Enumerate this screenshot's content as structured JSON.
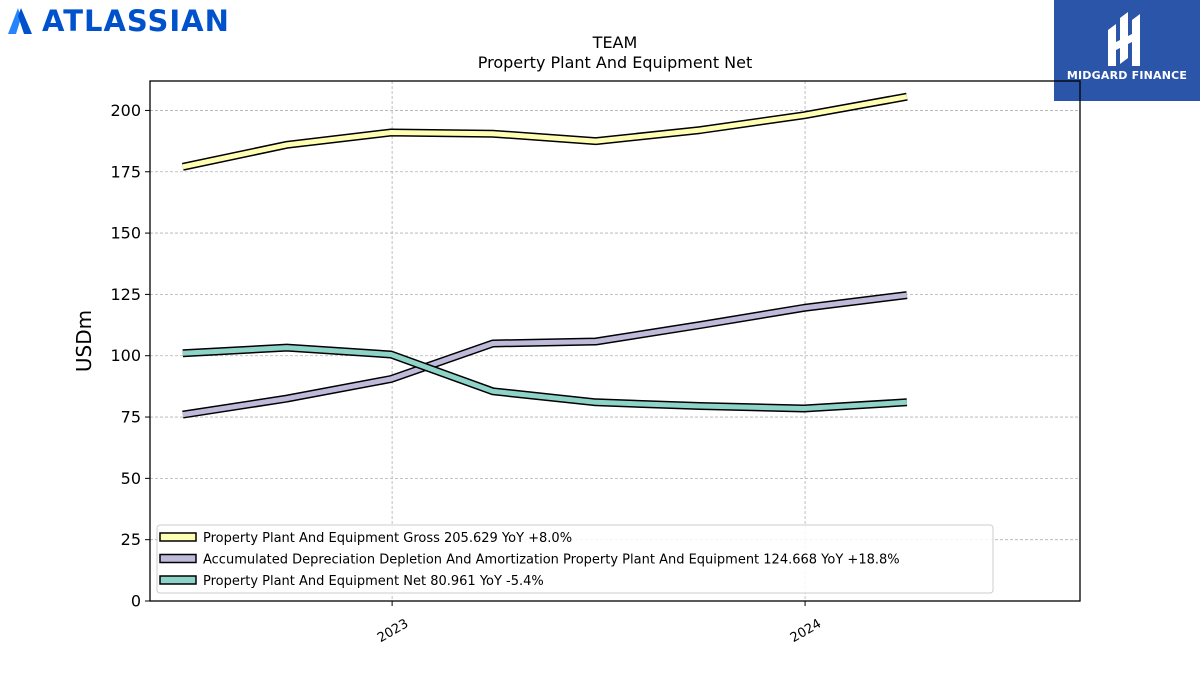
{
  "branding": {
    "left_logo_text": "ATLASSIAN",
    "left_logo_color": "#0052cc",
    "right_logo_text": "MIDGARD FINANCE",
    "right_logo_bg": "#2a55a8"
  },
  "chart_data": {
    "type": "line",
    "title": "TEAM",
    "subtitle": "Property Plant And Equipment Net",
    "ylabel": "USDm",
    "xlabel": "",
    "ylim": [
      0,
      212
    ],
    "yticks": [
      0,
      25,
      50,
      75,
      100,
      125,
      150,
      175,
      200
    ],
    "xlim": [
      "2022-06-01",
      "2024-08-31"
    ],
    "xticks": [
      {
        "label": "2023",
        "date": "2023-01-01"
      },
      {
        "label": "2024",
        "date": "2024-01-01"
      }
    ],
    "x": [
      "2022-06-30",
      "2022-09-30",
      "2022-12-31",
      "2023-03-31",
      "2023-06-30",
      "2023-09-30",
      "2023-12-31",
      "2024-03-31"
    ],
    "grid": true,
    "legend_position": "lower-left",
    "series": [
      {
        "name": "Property Plant And Equipment Gross",
        "legend": "Property Plant And Equipment Gross  205.629 YoY +8.0%",
        "color": "#ffffb3",
        "values": [
          177,
          186,
          191,
          190.5,
          187.5,
          192,
          198,
          205.6
        ]
      },
      {
        "name": "Accumulated Depreciation Depletion And Amortization Property Plant And Equipment",
        "legend": "Accumulated Depreciation Depletion And Amortization Property Plant And Equipment  124.668 YoY +18.8%",
        "color": "#bebada",
        "values": [
          76,
          82.5,
          90.5,
          105,
          105.8,
          112.5,
          119.5,
          124.7
        ]
      },
      {
        "name": "Property Plant And Equipment Net",
        "legend": "Property Plant And Equipment Net  80.961 YoY -5.4%",
        "color": "#8dd3c7",
        "values": [
          101,
          103.3,
          100.5,
          85.5,
          81,
          79.5,
          78.5,
          81
        ]
      }
    ]
  }
}
